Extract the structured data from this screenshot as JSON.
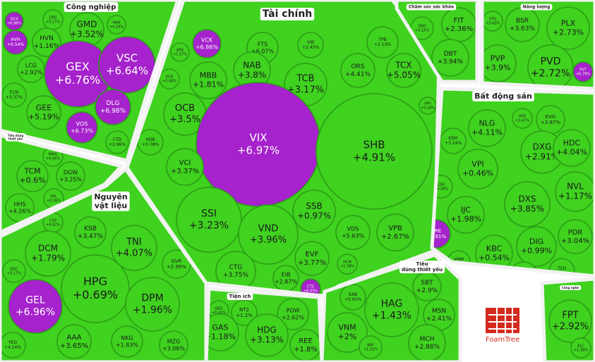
{
  "groups": [
    {
      "title": [
        "Công nghiệp"
      ],
      "cells": [
        {
          "ticker": "DC4",
          "change": "+6.98%",
          "color": "#a522cc"
        },
        {
          "ticker": "HVH",
          "change": "+6.54%",
          "color": "#a522cc"
        },
        {
          "ticker": "DPG",
          "change": "+3.17%",
          "color": "#3fd21f"
        },
        {
          "ticker": "GMD",
          "change": "+3.52%",
          "color": "#3fd21f"
        },
        {
          "ticker": "HAH",
          "change": "+4.28%",
          "color": "#3fd21f"
        },
        {
          "ticker": "HVN",
          "change": "+1.16%",
          "color": "#3fd21f"
        },
        {
          "ticker": "GEX",
          "change": "+6.76%",
          "color": "#a522cc"
        },
        {
          "ticker": "VSC",
          "change": "+6.64%",
          "color": "#a522cc"
        },
        {
          "ticker": "LCG",
          "change": "+2.92%",
          "color": "#3fd21f"
        },
        {
          "ticker": "FCN",
          "change": "+3.37%",
          "color": "#3fd21f"
        },
        {
          "ticker": "GEE",
          "change": "+5.19%",
          "color": "#3fd21f"
        },
        {
          "ticker": "DLG",
          "change": "+6.98%",
          "color": "#a522cc"
        },
        {
          "ticker": "VOS",
          "change": "+6.73%",
          "color": "#a522cc"
        },
        {
          "ticker": "CTD",
          "change": "+2.96%",
          "color": "#3fd21f"
        }
      ]
    },
    {
      "title": [
        "Tiêu dùng",
        "thiết yếu"
      ],
      "cells": [
        {
          "ticker": "MWG",
          "change": "+4.06%",
          "color": "#3fd21f"
        },
        {
          "ticker": "TCM",
          "change": "+0.6%",
          "color": "#3fd21f"
        },
        {
          "ticker": "DGW",
          "change": "+3.25%",
          "color": "#3fd21f"
        },
        {
          "ticker": "VPL",
          "change": "+3.36%",
          "color": "#3fd21f"
        },
        {
          "ticker": "HHS",
          "change": "+4.26%",
          "color": "#3fd21f"
        }
      ]
    },
    {
      "title": [
        "Nguyên",
        "vật liệu"
      ],
      "cells": [
        {
          "ticker": "CSV",
          "change": "+4.42%",
          "color": "#3fd21f"
        },
        {
          "ticker": "KSB",
          "change": "+3.47%",
          "color": "#3fd21f"
        },
        {
          "ticker": "TNI",
          "change": "+4.07%",
          "color": "#3fd21f"
        },
        {
          "ticker": "DCM",
          "change": "+1.79%",
          "color": "#3fd21f"
        },
        {
          "ticker": "DGC",
          "change": "+3.17%",
          "color": "#3fd21f"
        },
        {
          "ticker": "GVR",
          "change": "+2.99%",
          "color": "#3fd21f"
        },
        {
          "ticker": "HPG",
          "change": "+0.69%",
          "color": "#3fd21f"
        },
        {
          "ticker": "DPM",
          "change": "+1.96%",
          "color": "#3fd21f"
        },
        {
          "ticker": "GEL",
          "change": "+6.96%",
          "color": "#a522cc"
        },
        {
          "ticker": "AAA",
          "change": "+3.65%",
          "color": "#3fd21f"
        },
        {
          "ticker": "NKG",
          "change": "+1.83%",
          "color": "#3fd21f"
        },
        {
          "ticker": "MZG",
          "change": "+3.06%",
          "color": "#3fd21f"
        },
        {
          "ticker": "YEG",
          "change": "+4.14%",
          "color": "#3fd21f"
        }
      ]
    },
    {
      "title": [
        "Tài chính"
      ],
      "cells": [
        {
          "ticker": "VCK",
          "change": "+6.86%",
          "color": "#a522cc"
        },
        {
          "ticker": "APG",
          "change": "+1.57%",
          "color": "#3fd21f"
        },
        {
          "ticker": "FTS",
          "change": "+6.07%",
          "color": "#3fd21f"
        },
        {
          "ticker": "VIB",
          "change": "+2.43%",
          "color": "#3fd21f"
        },
        {
          "ticker": "TPB",
          "change": "+2.13%",
          "color": "#3fd21f"
        },
        {
          "ticker": "NAB",
          "change": "+3.8%",
          "color": "#3fd21f"
        },
        {
          "ticker": "MBB",
          "change": "+1.81%",
          "color": "#3fd21f"
        },
        {
          "ticker": "VCB",
          "change": "+3.48%",
          "color": "#3fd21f"
        },
        {
          "ticker": "TCB",
          "change": "+3.17%",
          "color": "#3fd21f"
        },
        {
          "ticker": "ORS",
          "change": "+4.41%",
          "color": "#3fd21f"
        },
        {
          "ticker": "TCX",
          "change": "+5.05%",
          "color": "#3fd21f"
        },
        {
          "ticker": "VPX",
          "change": "+5.18%",
          "color": "#3fd21f"
        },
        {
          "ticker": "OCB",
          "change": "+3.5%",
          "color": "#3fd21f"
        },
        {
          "ticker": "VIX",
          "change": "+6.97%",
          "color": "#a522cc"
        },
        {
          "ticker": "SHB",
          "change": "+4.91%",
          "color": "#3fd21f"
        },
        {
          "ticker": "HDB",
          "change": "+0.78%",
          "color": "#3fd21f"
        },
        {
          "ticker": "VCI",
          "change": "+3.37%",
          "color": "#3fd21f"
        },
        {
          "ticker": "SSI",
          "change": "+3.23%",
          "color": "#3fd21f"
        },
        {
          "ticker": "SSB",
          "change": "+0.97%",
          "color": "#3fd21f"
        },
        {
          "ticker": "VND",
          "change": "+3.96%",
          "color": "#3fd21f"
        },
        {
          "ticker": "VDS",
          "change": "+5.63%",
          "color": "#3fd21f"
        },
        {
          "ticker": "VPB",
          "change": "+2.67%",
          "color": "#3fd21f"
        },
        {
          "ticker": "CTG",
          "change": "+3.75%",
          "color": "#3fd21f"
        },
        {
          "ticker": "EVF",
          "change": "+3.77%",
          "color": "#3fd21f"
        },
        {
          "ticker": "EIB",
          "change": "+2.87%",
          "color": "#3fd21f"
        },
        {
          "ticker": "HCM",
          "change": "+1.78%",
          "color": "#3fd21f"
        },
        {
          "ticker": "CTS",
          "change": "+6.93%",
          "color": "#a522cc"
        }
      ]
    },
    {
      "title": [
        "Chăm sóc sức khỏe"
      ],
      "cells": [
        {
          "ticker": "DBD",
          "change": "+3.15%",
          "color": "#3fd21f"
        },
        {
          "ticker": "FIT",
          "change": "+2.36%",
          "color": "#3fd21f"
        },
        {
          "ticker": "DBT",
          "change": "+3.94%",
          "color": "#3fd21f"
        }
      ]
    },
    {
      "title": [
        "Năng lượng"
      ],
      "cells": [
        {
          "ticker": "VTO",
          "change": "+3.43%",
          "color": "#3fd21f"
        },
        {
          "ticker": "BSR",
          "change": "+3.63%",
          "color": "#3fd21f"
        },
        {
          "ticker": "PLX",
          "change": "+2.73%",
          "color": "#3fd21f"
        },
        {
          "ticker": "PVP",
          "change": "+3.9%",
          "color": "#3fd21f"
        },
        {
          "ticker": "PVD",
          "change": "+2.72%",
          "color": "#3fd21f"
        },
        {
          "ticker": "PVT",
          "change": "+6.79%",
          "color": "#a522cc"
        }
      ]
    },
    {
      "title": [
        "Bất động sản"
      ],
      "cells": [
        {
          "ticker": "NLG",
          "change": "+4.11%",
          "color": "#3fd21f"
        },
        {
          "ticker": "HPX",
          "change": "+3.47%",
          "color": "#3fd21f"
        },
        {
          "ticker": "EVG",
          "change": "+3.87%",
          "color": "#3fd21f"
        },
        {
          "ticker": "KDH",
          "change": "+3.24%",
          "color": "#3fd21f"
        },
        {
          "ticker": "DXG",
          "change": "+2.91%",
          "color": "#3fd21f"
        },
        {
          "ticker": "HDC",
          "change": "+4.04%",
          "color": "#3fd21f"
        },
        {
          "ticker": "VPI",
          "change": "+0.46%",
          "color": "#3fd21f"
        },
        {
          "ticker": "LDG",
          "change": "+4.26%",
          "color": "#3fd21f"
        },
        {
          "ticker": "DXS",
          "change": "+3.85%",
          "color": "#3fd21f"
        },
        {
          "ticker": "NVL",
          "change": "+1.17%",
          "color": "#3fd21f"
        },
        {
          "ticker": "IJC",
          "change": "+1.98%",
          "color": "#3fd21f"
        },
        {
          "ticker": "VRE",
          "change": "+6.81%",
          "color": "#a522cc"
        },
        {
          "ticker": "PDR",
          "change": "+3.04%",
          "color": "#3fd21f"
        },
        {
          "ticker": "KBC",
          "change": "+0.54%",
          "color": "#3fd21f"
        },
        {
          "ticker": "DIG",
          "change": "+0.99%",
          "color": "#3fd21f"
        },
        {
          "ticker": "VHM",
          "change": "+5.64%",
          "color": "#3fd21f"
        },
        {
          "ticker": "BCM",
          "change": "+3.71%",
          "color": "#3fd21f"
        },
        {
          "ticker": "TCH",
          "change": "+3.13%",
          "color": "#3fd21f"
        }
      ]
    },
    {
      "title": [
        "Tiêu",
        "dùng thiết yếu"
      ],
      "cells": [
        {
          "ticker": "SAB",
          "change": "+0.93%",
          "color": "#3fd21f"
        },
        {
          "ticker": "SBT",
          "change": "+2.9%",
          "color": "#3fd21f"
        },
        {
          "ticker": "HAG",
          "change": "+1.43%",
          "color": "#3fd21f"
        },
        {
          "ticker": "MSN",
          "change": "+2.41%",
          "color": "#3fd21f"
        },
        {
          "ticker": "VNM",
          "change": "+2%",
          "color": "#3fd21f"
        },
        {
          "ticker": "BAF",
          "change": "+1.02%",
          "color": "#3fd21f"
        },
        {
          "ticker": "MCH",
          "change": "+2.88%",
          "color": "#3fd21f"
        }
      ]
    },
    {
      "title": [
        "Tiện ích"
      ],
      "cells": [
        {
          "ticker": "GEG",
          "change": "+0.41%",
          "color": "#3fd21f"
        },
        {
          "ticker": "NT2",
          "change": "+1.2%",
          "color": "#3fd21f"
        },
        {
          "ticker": "POW",
          "change": "+2.62%",
          "color": "#3fd21f"
        },
        {
          "ticker": "GAS",
          "change": "+1.18%",
          "color": "#3fd21f"
        },
        {
          "ticker": "HDG",
          "change": "+3.13%",
          "color": "#3fd21f"
        },
        {
          "ticker": "REE",
          "change": "+1.8%",
          "color": "#3fd21f"
        }
      ]
    },
    {
      "title": [
        "Công nghệ"
      ],
      "cells": [
        {
          "ticker": "FPT",
          "change": "+2.92%",
          "color": "#3fd21f"
        },
        {
          "ticker": "ELC",
          "change": "+1.38%",
          "color": "#3fd21f"
        }
      ]
    }
  ],
  "logo": "FoamTree"
}
